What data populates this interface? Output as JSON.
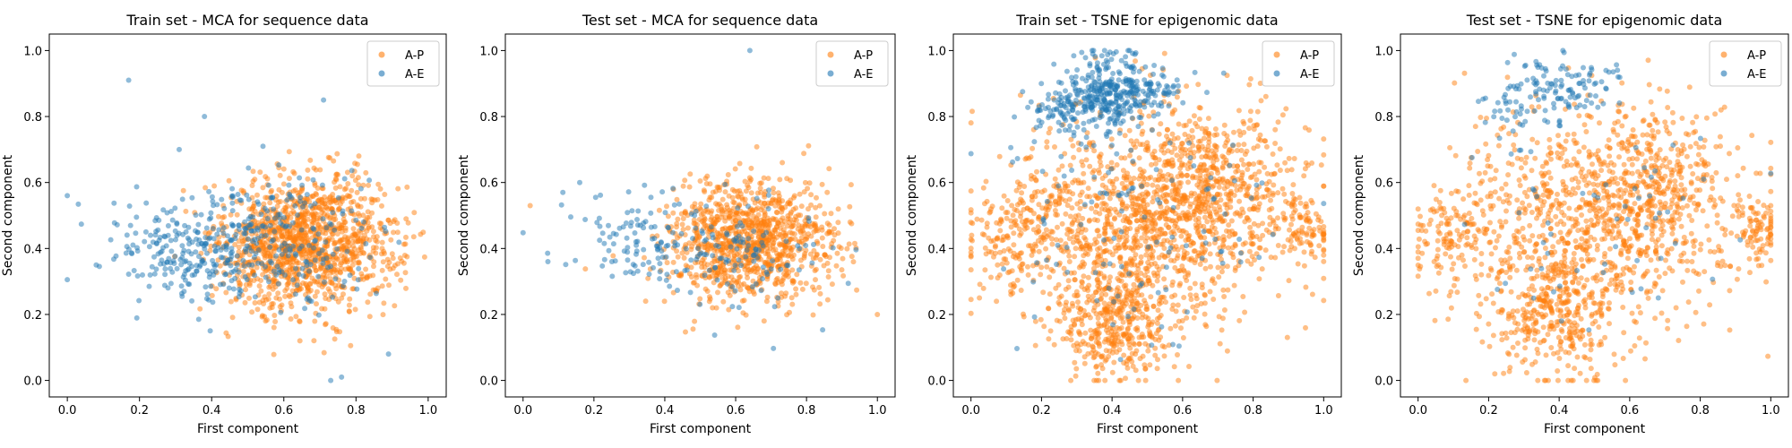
{
  "colors": {
    "A-P": "#ff7f0e",
    "A-E": "#1f77b4"
  },
  "chart_data": [
    {
      "type": "scatter",
      "title": "Train set - MCA for sequence data",
      "xlabel": "First component",
      "ylabel": "Second component",
      "xlim": [
        -0.05,
        1.05
      ],
      "ylim": [
        -0.05,
        1.05
      ],
      "xticks": [
        "0.0",
        "0.2",
        "0.4",
        "0.6",
        "0.8",
        "1.0"
      ],
      "yticks": [
        "0.0",
        "0.2",
        "0.4",
        "0.6",
        "0.8",
        "1.0"
      ],
      "legend": "top-right",
      "series": [
        {
          "name": "A-P",
          "color": "#ff7f0e",
          "clusters": [
            {
              "cx": 0.68,
              "cy": 0.42,
              "sx": 0.12,
              "sy": 0.1,
              "n": 1100
            },
            {
              "cx": 0.55,
              "cy": 0.4,
              "sx": 0.08,
              "sy": 0.1,
              "n": 180
            }
          ]
        },
        {
          "name": "A-E",
          "color": "#1f77b4",
          "clusters": [
            {
              "cx": 0.38,
              "cy": 0.4,
              "sx": 0.13,
              "sy": 0.08,
              "n": 280
            },
            {
              "cx": 0.62,
              "cy": 0.42,
              "sx": 0.12,
              "sy": 0.1,
              "n": 170
            }
          ],
          "points": [
            [
              0.17,
              0.91
            ],
            [
              0.71,
              0.85
            ],
            [
              0.38,
              0.8
            ],
            [
              0.31,
              0.7
            ],
            [
              0.0,
              0.56
            ],
            [
              0.89,
              0.08
            ],
            [
              0.73,
              0.0
            ],
            [
              0.76,
              0.01
            ],
            [
              0.08,
              0.35
            ]
          ]
        }
      ]
    },
    {
      "type": "scatter",
      "title": "Test set - MCA for sequence data",
      "xlabel": "First component",
      "ylabel": "Second component",
      "xlim": [
        -0.05,
        1.05
      ],
      "ylim": [
        -0.05,
        1.05
      ],
      "xticks": [
        "0.0",
        "0.2",
        "0.4",
        "0.6",
        "0.8",
        "1.0"
      ],
      "yticks": [
        "0.0",
        "0.2",
        "0.4",
        "0.6",
        "0.8",
        "1.0"
      ],
      "legend": "top-right",
      "series": [
        {
          "name": "A-P",
          "color": "#ff7f0e",
          "clusters": [
            {
              "cx": 0.66,
              "cy": 0.42,
              "sx": 0.11,
              "sy": 0.09,
              "n": 900
            },
            {
              "cx": 0.52,
              "cy": 0.4,
              "sx": 0.08,
              "sy": 0.09,
              "n": 120
            }
          ],
          "points": [
            [
              0.02,
              0.53
            ],
            [
              1.0,
              0.2
            ]
          ]
        },
        {
          "name": "A-E",
          "color": "#1f77b4",
          "clusters": [
            {
              "cx": 0.34,
              "cy": 0.42,
              "sx": 0.1,
              "sy": 0.07,
              "n": 110
            },
            {
              "cx": 0.62,
              "cy": 0.4,
              "sx": 0.11,
              "sy": 0.09,
              "n": 110
            }
          ],
          "points": [
            [
              0.64,
              1.0
            ],
            [
              0.16,
              0.6
            ],
            [
              0.07,
              0.36
            ]
          ]
        }
      ]
    },
    {
      "type": "scatter",
      "title": "Train set - TSNE for epigenomic data",
      "xlabel": "First component",
      "ylabel": "Second component",
      "xlim": [
        -0.05,
        1.05
      ],
      "ylim": [
        -0.05,
        1.05
      ],
      "xticks": [
        "0.0",
        "0.2",
        "0.4",
        "0.6",
        "0.8",
        "1.0"
      ],
      "yticks": [
        "0.0",
        "0.2",
        "0.4",
        "0.6",
        "0.8",
        "1.0"
      ],
      "legend": "top-right",
      "series": [
        {
          "name": "A-P",
          "color": "#ff7f0e",
          "clusters": [
            {
              "cx": 0.5,
              "cy": 0.48,
              "sx": 0.2,
              "sy": 0.17,
              "n": 1300
            },
            {
              "cx": 0.4,
              "cy": 0.18,
              "sx": 0.08,
              "sy": 0.09,
              "n": 350
            },
            {
              "cx": 0.7,
              "cy": 0.62,
              "sx": 0.1,
              "sy": 0.1,
              "n": 250
            },
            {
              "cx": 0.12,
              "cy": 0.44,
              "sx": 0.07,
              "sy": 0.08,
              "n": 150
            },
            {
              "cx": 0.95,
              "cy": 0.46,
              "sx": 0.04,
              "sy": 0.05,
              "n": 90
            }
          ]
        },
        {
          "name": "A-E",
          "color": "#1f77b4",
          "clusters": [
            {
              "cx": 0.38,
              "cy": 0.87,
              "sx": 0.06,
              "sy": 0.06,
              "n": 300
            },
            {
              "cx": 0.25,
              "cy": 0.82,
              "sx": 0.04,
              "sy": 0.03,
              "n": 60
            },
            {
              "cx": 0.5,
              "cy": 0.88,
              "sx": 0.06,
              "sy": 0.03,
              "n": 70
            },
            {
              "cx": 0.5,
              "cy": 0.5,
              "sx": 0.22,
              "sy": 0.17,
              "n": 120
            }
          ]
        }
      ]
    },
    {
      "type": "scatter",
      "title": "Test set - TSNE for epigenomic data",
      "xlabel": "First component",
      "ylabel": "Second component",
      "xlim": [
        -0.05,
        1.05
      ],
      "ylim": [
        -0.05,
        1.05
      ],
      "xticks": [
        "0.0",
        "0.2",
        "0.4",
        "0.6",
        "0.8",
        "1.0"
      ],
      "yticks": [
        "0.0",
        "0.2",
        "0.4",
        "0.6",
        "0.8",
        "1.0"
      ],
      "legend": "top-right",
      "series": [
        {
          "name": "A-P",
          "color": "#ff7f0e",
          "clusters": [
            {
              "cx": 0.5,
              "cy": 0.48,
              "sx": 0.2,
              "sy": 0.17,
              "n": 1000
            },
            {
              "cx": 0.38,
              "cy": 0.18,
              "sx": 0.08,
              "sy": 0.09,
              "n": 280
            },
            {
              "cx": 0.7,
              "cy": 0.62,
              "sx": 0.1,
              "sy": 0.1,
              "n": 200
            },
            {
              "cx": 0.1,
              "cy": 0.44,
              "sx": 0.06,
              "sy": 0.07,
              "n": 110
            },
            {
              "cx": 0.95,
              "cy": 0.46,
              "sx": 0.04,
              "sy": 0.05,
              "n": 80
            }
          ]
        },
        {
          "name": "A-E",
          "color": "#1f77b4",
          "clusters": [
            {
              "cx": 0.38,
              "cy": 0.88,
              "sx": 0.06,
              "sy": 0.06,
              "n": 90
            },
            {
              "cx": 0.25,
              "cy": 0.82,
              "sx": 0.04,
              "sy": 0.03,
              "n": 25
            },
            {
              "cx": 0.5,
              "cy": 0.9,
              "sx": 0.05,
              "sy": 0.03,
              "n": 25
            },
            {
              "cx": 0.5,
              "cy": 0.5,
              "sx": 0.22,
              "sy": 0.17,
              "n": 60
            }
          ]
        }
      ]
    }
  ]
}
